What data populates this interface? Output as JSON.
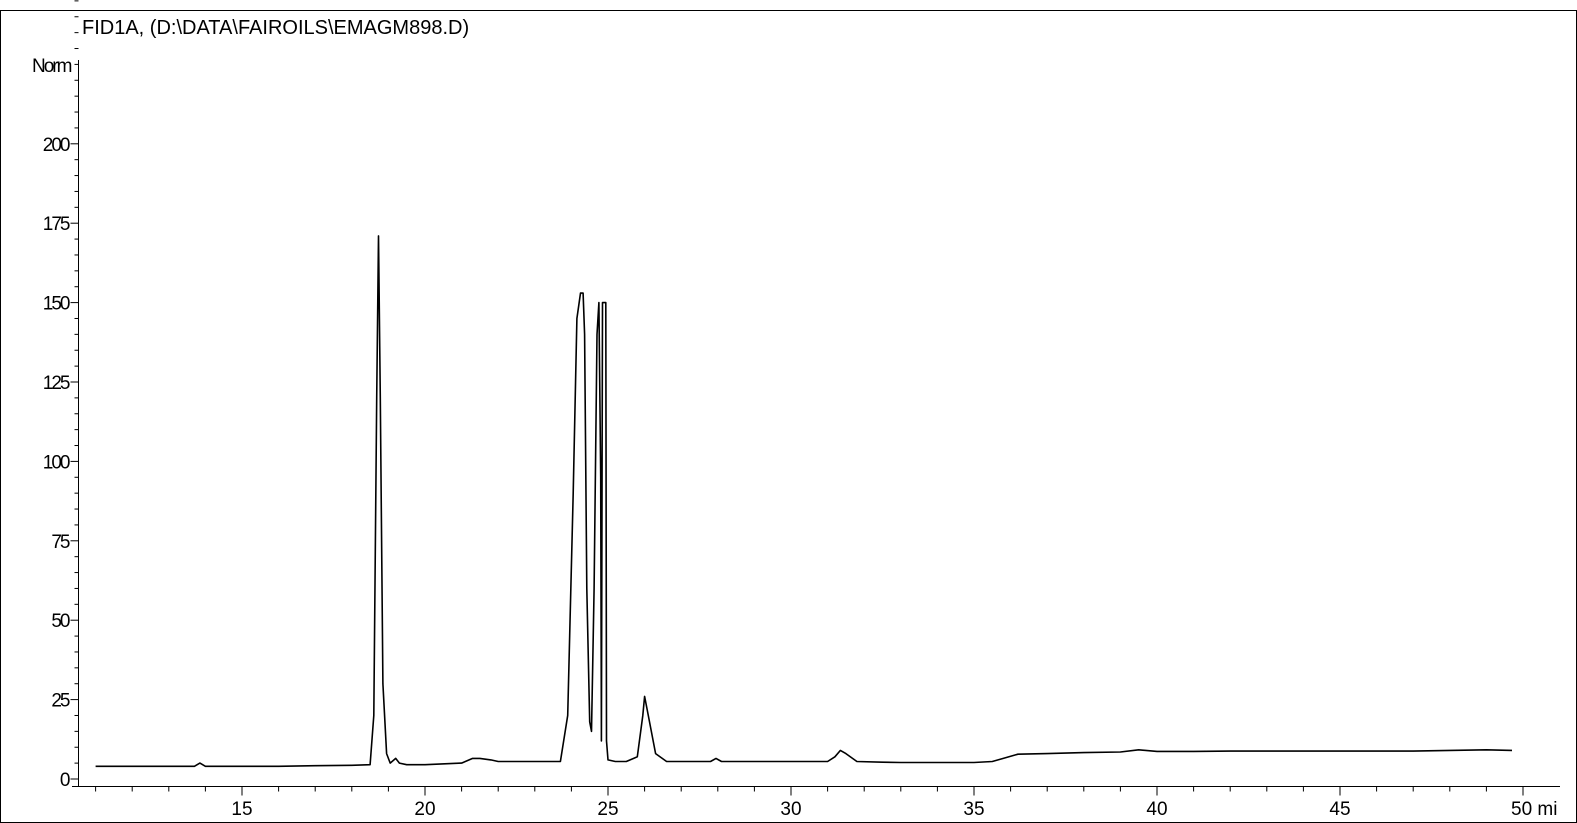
{
  "chart_data": {
    "type": "line",
    "title": "FID1A, (D:\\DATA\\FAIROILS\\EMAGM898.D)",
    "ylabel": "Norm",
    "xlabel": "min",
    "x_unit_label": "50 mi",
    "xlim": [
      11,
      50.5
    ],
    "ylim": [
      0,
      225
    ],
    "y_major_ticks": [
      0,
      25,
      50,
      75,
      100,
      125,
      150,
      175,
      200
    ],
    "y_tick_labels": [
      "0",
      "25",
      "50",
      "75",
      "100",
      "125",
      "150",
      "175",
      "200"
    ],
    "x_major_ticks": [
      15,
      20,
      25,
      30,
      35,
      40,
      45
    ],
    "x_tick_labels": [
      "15",
      "20",
      "25",
      "30",
      "35",
      "40",
      "45"
    ],
    "x_minor_step": 1,
    "y_minor_step": 5,
    "grid": false,
    "legend": "none",
    "series": [
      {
        "x": [
          11.0,
          12.0,
          13.0,
          13.7,
          13.85,
          14.0,
          15.0,
          16.0,
          17.0,
          18.0,
          18.5,
          18.6,
          18.68,
          18.73,
          18.78,
          18.85,
          18.95,
          19.05,
          19.2,
          19.3,
          19.5,
          20.0,
          21.0,
          21.3,
          21.5,
          21.8,
          22.0,
          22.3,
          23.0,
          23.7,
          23.9,
          24.05,
          24.15,
          24.25,
          24.32,
          24.36,
          24.42,
          24.5,
          24.55,
          24.62,
          24.7,
          24.75,
          24.8,
          24.82,
          24.85,
          24.88,
          24.92,
          24.94,
          24.96,
          25.0,
          25.2,
          25.5,
          25.8,
          25.95,
          26.0,
          26.1,
          26.3,
          26.6,
          27.0,
          27.8,
          27.95,
          28.1,
          29.0,
          30.0,
          31.0,
          31.2,
          31.35,
          31.5,
          31.8,
          32.5,
          33.0,
          34.0,
          35.0,
          35.5,
          35.8,
          36.2,
          37.0,
          38.0,
          39.0,
          39.5,
          40.0,
          41.0,
          42.0,
          43.0,
          44.0,
          45.0,
          46.0,
          47.0,
          48.0,
          49.0,
          49.7
        ],
        "y": [
          4,
          4,
          4,
          4,
          5,
          4,
          4,
          4,
          4.2,
          4.3,
          4.5,
          20,
          120,
          171,
          120,
          30,
          8,
          5,
          6.5,
          5,
          4.5,
          4.5,
          5,
          6.5,
          6.5,
          6,
          5.5,
          5.5,
          5.5,
          5.5,
          20,
          90,
          145,
          153,
          153,
          140,
          60,
          18,
          15,
          60,
          140,
          150,
          95,
          12,
          150,
          150,
          150,
          150,
          12,
          6,
          5.5,
          5.5,
          7,
          20,
          26,
          20,
          8,
          5.5,
          5.5,
          5.5,
          6.5,
          5.5,
          5.5,
          5.5,
          5.5,
          7,
          9,
          8,
          5.5,
          5.3,
          5.2,
          5.2,
          5.2,
          5.5,
          6.5,
          7.8,
          8,
          8.3,
          8.5,
          9.2,
          8.7,
          8.7,
          8.8,
          8.8,
          8.8,
          8.8,
          8.8,
          8.8,
          9,
          9.2,
          9
        ]
      }
    ]
  }
}
